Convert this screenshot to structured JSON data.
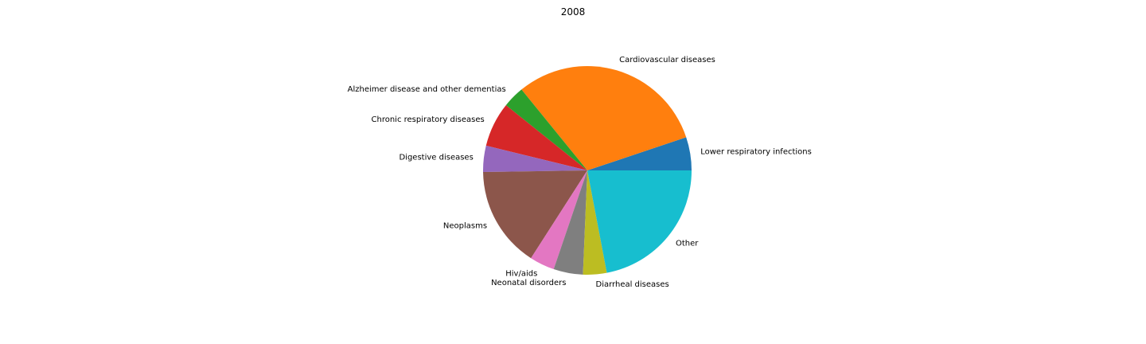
{
  "chart_data": {
    "type": "pie",
    "title": "2008",
    "start_angle_deg": 0,
    "direction": "counterclockwise",
    "legend": "none",
    "slices": [
      {
        "label": "Lower respiratory infections",
        "value": 5.2,
        "color": "#1f77b4"
      },
      {
        "label": "Cardiovascular diseases",
        "value": 31.0,
        "color": "#ff7f0e"
      },
      {
        "label": "Alzheimer disease and other dementias",
        "value": 3.4,
        "color": "#2ca02c"
      },
      {
        "label": "Chronic respiratory diseases",
        "value": 7.0,
        "color": "#d62728"
      },
      {
        "label": "Digestive diseases",
        "value": 4.1,
        "color": "#9467bd"
      },
      {
        "label": "Neoplasms",
        "value": 15.8,
        "color": "#8c564b"
      },
      {
        "label": "Hiv/aids",
        "value": 3.9,
        "color": "#e377c2"
      },
      {
        "label": "Neonatal disorders",
        "value": 4.6,
        "color": "#7f7f7f"
      },
      {
        "label": "Diarrheal diseases",
        "value": 3.7,
        "color": "#bcbd22"
      },
      {
        "label": "Other",
        "value": 22.2,
        "color": "#17becf"
      }
    ]
  }
}
